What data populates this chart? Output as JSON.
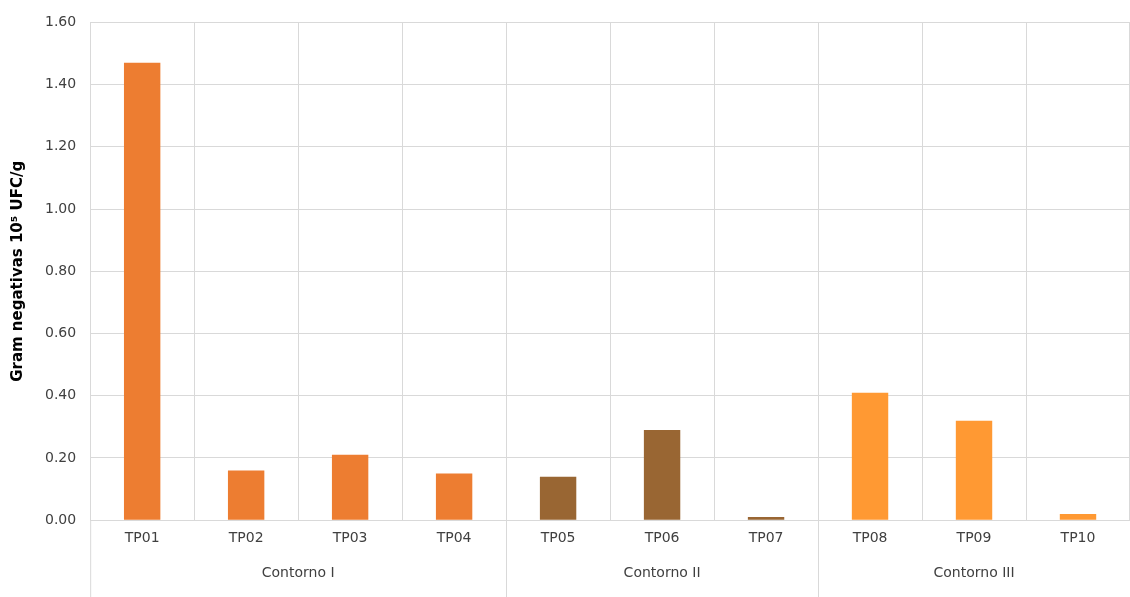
{
  "chart_data": {
    "type": "bar",
    "ylabel": "Gram negativas 10⁵ UFC/g",
    "categories": [
      "TP01",
      "TP02",
      "TP03",
      "TP04",
      "TP05",
      "TP06",
      "TP07",
      "TP08",
      "TP09",
      "TP10"
    ],
    "values": [
      1.47,
      0.16,
      0.21,
      0.15,
      0.14,
      0.29,
      0.01,
      0.41,
      0.32,
      0.02
    ],
    "colors": [
      "#ed7d31",
      "#ed7d31",
      "#ed7d31",
      "#ed7d31",
      "#996633",
      "#996633",
      "#996633",
      "#ff9933",
      "#ff9933",
      "#ff9933"
    ],
    "annotations": [
      "Contorno I",
      "Contorno II",
      "Contorno III"
    ],
    "ylim": [
      0,
      1.6
    ],
    "yticks": [
      {
        "value": 0,
        "label": "0.00"
      },
      {
        "value": 0.2,
        "label": "0.20"
      },
      {
        "value": 0.4,
        "label": "0.40"
      },
      {
        "value": 0.6,
        "label": "0.60"
      },
      {
        "value": 0.8,
        "label": "0.80"
      },
      {
        "value": 1,
        "label": "1.00"
      },
      {
        "value": 1.2,
        "label": "1.20"
      },
      {
        "value": 1.4,
        "label": "1.40"
      },
      {
        "value": 1.6,
        "label": "1.60"
      }
    ],
    "grid": true,
    "legend": false
  }
}
